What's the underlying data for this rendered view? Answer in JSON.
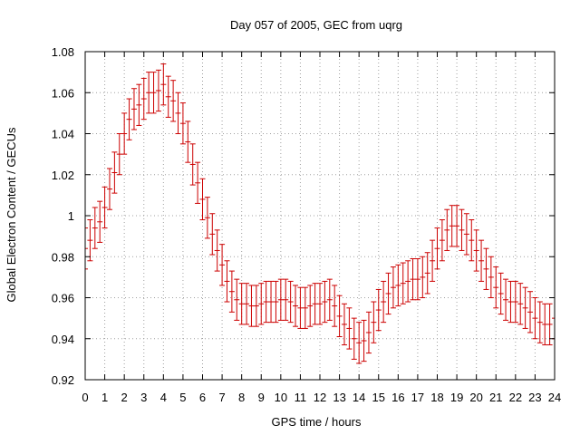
{
  "chart_data": {
    "type": "scatter",
    "title": "Day 057 of 2005, GEC from uqrg",
    "xlabel": "GPS time / hours",
    "ylabel": "Global Electron Content / GECUs",
    "xlim": [
      0,
      24
    ],
    "ylim": [
      0.92,
      1.08
    ],
    "grid": true,
    "x_ticks": [
      "0",
      "1",
      "2",
      "3",
      "4",
      "5",
      "6",
      "7",
      "8",
      "9",
      "10",
      "11",
      "12",
      "13",
      "14",
      "15",
      "16",
      "17",
      "18",
      "19",
      "20",
      "21",
      "22",
      "23",
      "24"
    ],
    "y_ticks": [
      "0.92",
      "0.94",
      "0.96",
      "0.98",
      "1",
      "1.02",
      "1.04",
      "1.06",
      "1.08"
    ],
    "error_color": "#cc0000",
    "error_halfwidth": 0.01,
    "series": [
      {
        "name": "GEC",
        "x": [
          0,
          0.25,
          0.5,
          0.75,
          1,
          1.25,
          1.5,
          1.75,
          2,
          2.25,
          2.5,
          2.75,
          3,
          3.25,
          3.5,
          3.75,
          4,
          4.25,
          4.5,
          4.75,
          5,
          5.25,
          5.5,
          5.75,
          6,
          6.25,
          6.5,
          6.75,
          7,
          7.25,
          7.5,
          7.75,
          8,
          8.25,
          8.5,
          8.75,
          9,
          9.25,
          9.5,
          9.75,
          10,
          10.25,
          10.5,
          10.75,
          11,
          11.25,
          11.5,
          11.75,
          12,
          12.25,
          12.5,
          12.75,
          13,
          13.25,
          13.5,
          13.75,
          14,
          14.25,
          14.5,
          14.75,
          15,
          15.25,
          15.5,
          15.75,
          16,
          16.25,
          16.5,
          16.75,
          17,
          17.25,
          17.5,
          17.75,
          18,
          18.25,
          18.5,
          18.75,
          19,
          19.25,
          19.5,
          19.75,
          20,
          20.25,
          20.5,
          20.75,
          21,
          21.25,
          21.5,
          21.75,
          22,
          22.25,
          22.5,
          22.75,
          23,
          23.25,
          23.5,
          23.75,
          24
        ],
        "y": [
          0.984,
          0.988,
          0.994,
          0.997,
          1.004,
          1.013,
          1.021,
          1.03,
          1.04,
          1.047,
          1.052,
          1.054,
          1.057,
          1.06,
          1.06,
          1.061,
          1.064,
          1.058,
          1.056,
          1.05,
          1.045,
          1.036,
          1.025,
          1.016,
          1.008,
          0.999,
          0.991,
          0.983,
          0.976,
          0.968,
          0.963,
          0.959,
          0.957,
          0.957,
          0.956,
          0.956,
          0.957,
          0.958,
          0.958,
          0.958,
          0.959,
          0.959,
          0.958,
          0.956,
          0.955,
          0.955,
          0.956,
          0.957,
          0.957,
          0.958,
          0.959,
          0.956,
          0.951,
          0.947,
          0.945,
          0.94,
          0.938,
          0.939,
          0.943,
          0.948,
          0.954,
          0.958,
          0.962,
          0.965,
          0.966,
          0.967,
          0.968,
          0.969,
          0.969,
          0.97,
          0.972,
          0.978,
          0.984,
          0.988,
          0.993,
          0.995,
          0.995,
          0.993,
          0.991,
          0.988,
          0.983,
          0.978,
          0.974,
          0.97,
          0.965,
          0.962,
          0.959,
          0.958,
          0.958,
          0.957,
          0.955,
          0.953,
          0.95,
          0.948,
          0.947,
          0.947,
          0.95
        ]
      }
    ]
  }
}
